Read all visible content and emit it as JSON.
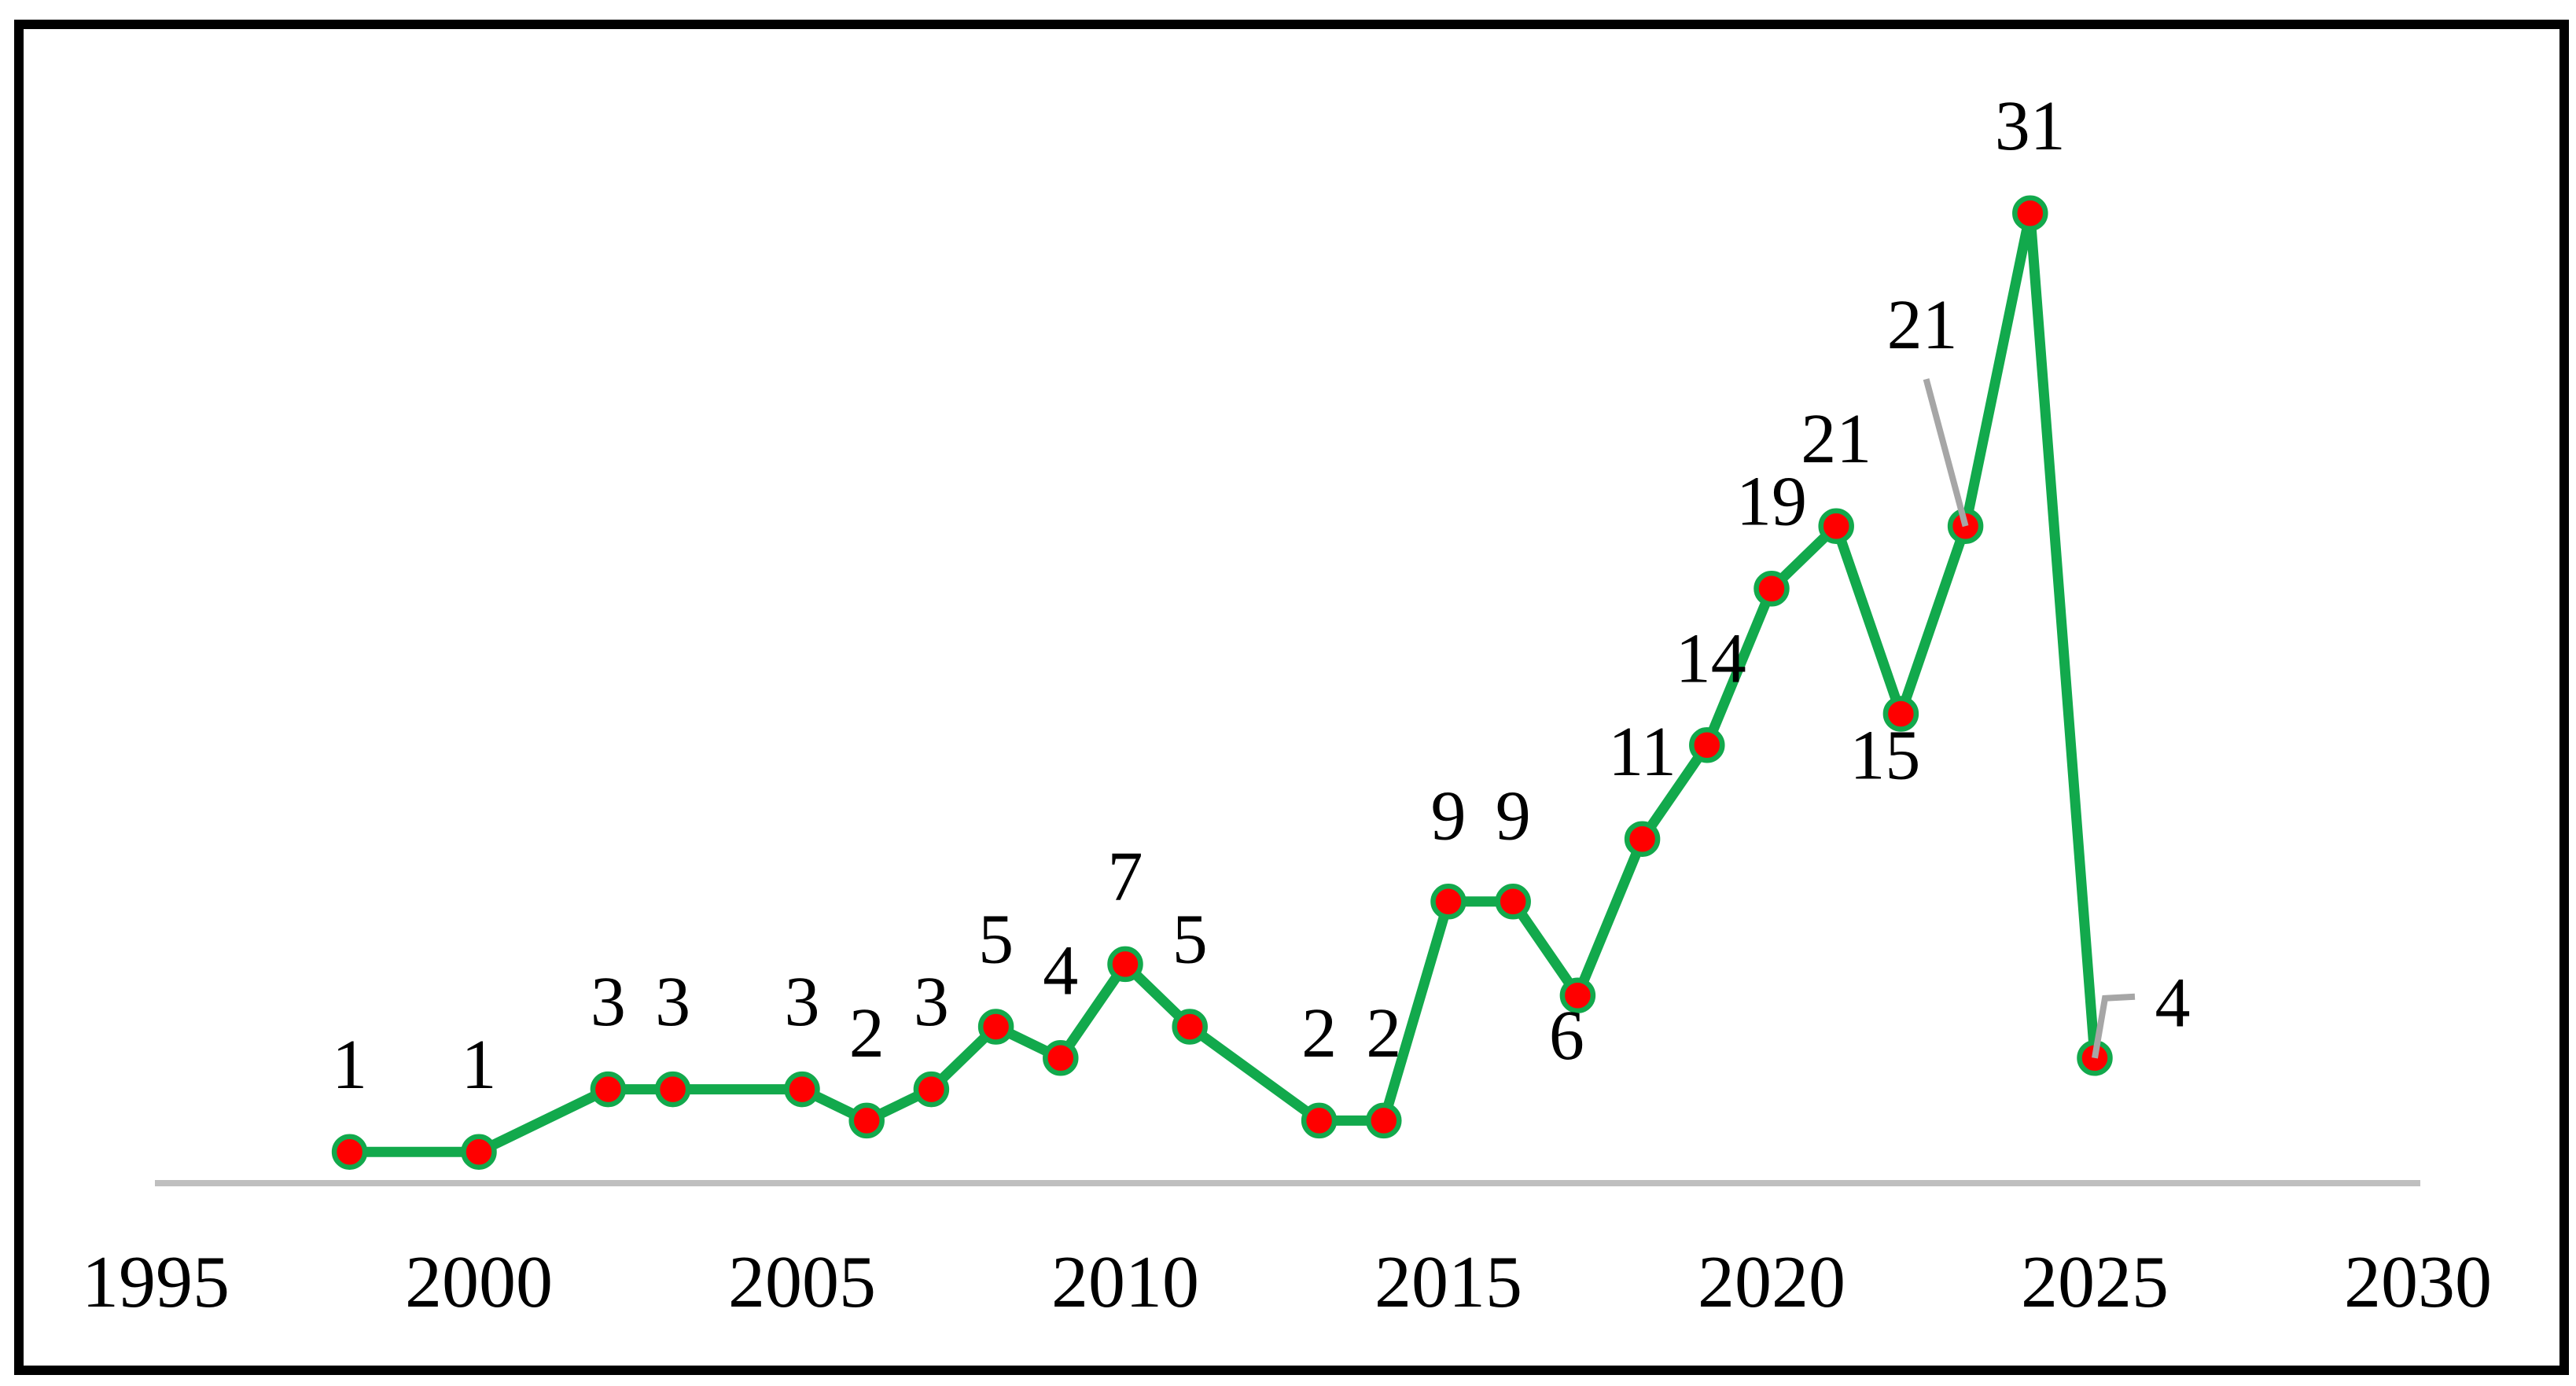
{
  "chart_data": {
    "type": "line",
    "title": "",
    "xlabel": "",
    "ylabel": "",
    "xlim": [
      1995,
      2030
    ],
    "ylim": [
      0,
      35
    ],
    "grid": false,
    "legend": false,
    "x_ticks": [
      "1995",
      "2000",
      "2005",
      "2010",
      "2015",
      "2020",
      "2025",
      "2030"
    ],
    "points": [
      {
        "year": 1998,
        "value": 1,
        "label": "1",
        "label_offset": [
          0,
          -112
        ]
      },
      {
        "year": 2000,
        "value": 1,
        "label": "1",
        "label_offset": [
          0,
          -112
        ]
      },
      {
        "year": 2002,
        "value": 3,
        "label": "3",
        "label_offset": [
          0,
          -112
        ]
      },
      {
        "year": 2003,
        "value": 3,
        "label": "3",
        "label_offset": [
          0,
          -112
        ]
      },
      {
        "year": 2005,
        "value": 3,
        "label": "3",
        "label_offset": [
          0,
          -112
        ]
      },
      {
        "year": 2006,
        "value": 2,
        "label": "2",
        "label_offset": [
          0,
          -112
        ]
      },
      {
        "year": 2007,
        "value": 3,
        "label": "3",
        "label_offset": [
          0,
          -112
        ]
      },
      {
        "year": 2008,
        "value": 5,
        "label": "5",
        "label_offset": [
          0,
          -112
        ]
      },
      {
        "year": 2009,
        "value": 4,
        "label": "4",
        "label_offset": [
          0,
          -112
        ]
      },
      {
        "year": 2010,
        "value": 7,
        "label": "7",
        "label_offset": [
          0,
          -112
        ]
      },
      {
        "year": 2011,
        "value": 5,
        "label": "5",
        "label_offset": [
          0,
          -112
        ]
      },
      {
        "year": 2013,
        "value": 2,
        "label": "2",
        "label_offset": [
          0,
          -112
        ]
      },
      {
        "year": 2014,
        "value": 2,
        "label": "2",
        "label_offset": [
          0,
          -112
        ]
      },
      {
        "year": 2015,
        "value": 9,
        "label": "9",
        "label_offset": [
          0,
          -110
        ]
      },
      {
        "year": 2016,
        "value": 9,
        "label": "9",
        "label_offset": [
          0,
          -110
        ]
      },
      {
        "year": 2017,
        "value": 6,
        "label": "6",
        "label_offset": [
          -14,
          50
        ]
      },
      {
        "year": 2018,
        "value": 11,
        "label": "11",
        "label_offset": [
          0,
          -112
        ]
      },
      {
        "year": 2019,
        "value": 14,
        "label": "14",
        "label_offset": [
          5,
          -111
        ]
      },
      {
        "year": 2020,
        "value": 19,
        "label": "19",
        "label_offset": [
          0,
          -112
        ]
      },
      {
        "year": 2021,
        "value": 21,
        "label": "21",
        "label_offset": [
          0,
          -112
        ]
      },
      {
        "year": 2022,
        "value": 15,
        "label": "15",
        "label_offset": [
          -20,
          52
        ]
      },
      {
        "year": 2023,
        "value": 21,
        "label": "21",
        "label_offset": [
          -55,
          -257
        ],
        "leader": [
          [
            -50,
            -187
          ],
          [
            0,
            0
          ]
        ]
      },
      {
        "year": 2024,
        "value": 31,
        "label": "31",
        "label_offset": [
          0,
          -112
        ]
      },
      {
        "year": 2025,
        "value": 4,
        "label": "4",
        "label_offset": [
          99,
          -71
        ],
        "leader": [
          [
            0,
            0
          ],
          [
            13,
            -76
          ],
          [
            51,
            -78
          ]
        ]
      }
    ],
    "colors": {
      "background": "#FFFFFF",
      "border": "#000000",
      "line": "#12A94C",
      "marker_fill": "#FF0000",
      "marker_ring": "#12A94C",
      "axis_line": "#BFBFBF",
      "leader": "#A6A6A6",
      "label": "#000000",
      "tick_label": "#000000"
    }
  }
}
